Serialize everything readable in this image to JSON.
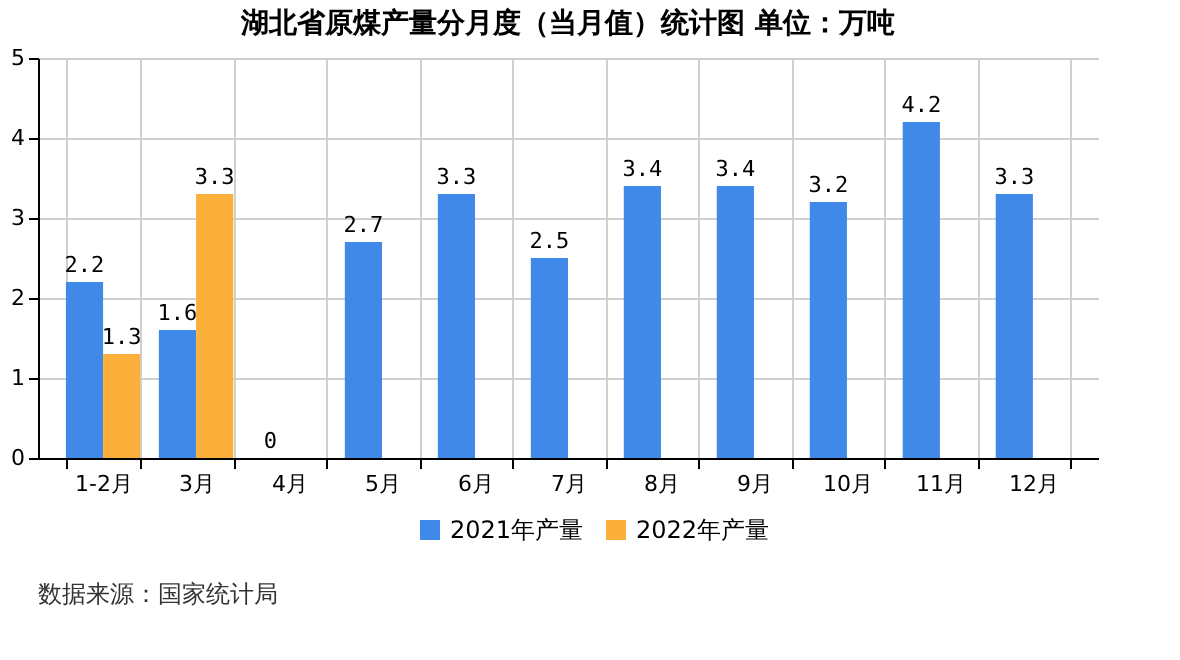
{
  "chart_data": {
    "type": "bar",
    "title": "湖北省原煤产量分月度（当月值）统计图 单位：万吨",
    "categories": [
      "1-2月",
      "3月",
      "4月",
      "5月",
      "6月",
      "7月",
      "8月",
      "9月",
      "10月",
      "11月",
      "12月"
    ],
    "series": [
      {
        "name": "2021年产量",
        "color": "#4189e9",
        "values": [
          2.2,
          1.6,
          0,
          2.7,
          3.3,
          2.5,
          3.4,
          3.4,
          3.2,
          4.2,
          3.3
        ]
      },
      {
        "name": "2022年产量",
        "color": "#fbb03b",
        "values": [
          1.3,
          3.3,
          null,
          null,
          null,
          null,
          null,
          null,
          null,
          null,
          null
        ]
      }
    ],
    "ylim": [
      0,
      5
    ],
    "yticks": [
      0,
      1,
      2,
      3,
      4,
      5
    ],
    "grid": true,
    "legend": "bottom",
    "data_labels": true,
    "annotations": [
      "数据来源：国家统计局"
    ]
  }
}
